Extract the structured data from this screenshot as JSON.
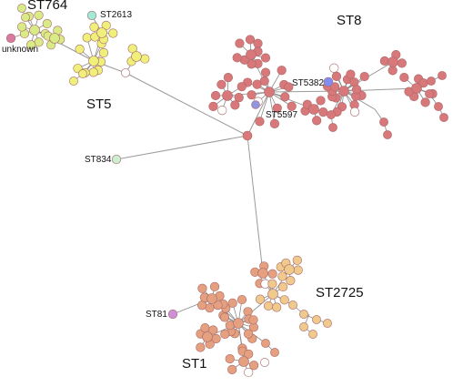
{
  "colors": {
    "st8": "#d9787a",
    "st1": "#e5a07f",
    "st2725": "#f0c98d",
    "st5": "#eef07a",
    "st764": "#d8eb86",
    "st2613": "#9fead8",
    "st834": "#c9efcf",
    "unknown": "#d97aa0",
    "st5382": "#7f8ef0",
    "st5597": "#8f95e0",
    "st81": "#cf8fd8",
    "white": "#ffffff",
    "edge": "#8a8a8a"
  },
  "cluster_labels": {
    "st764": "ST764",
    "st8": "ST8",
    "st5": "ST5",
    "st1": "ST1",
    "st2725": "ST2725"
  },
  "node_labels": {
    "st2613": "ST2613",
    "unknown": "unknown",
    "st5382": "ST5382",
    "st5597": "ST5597",
    "st834": "ST834",
    "st81": "ST81"
  }
}
